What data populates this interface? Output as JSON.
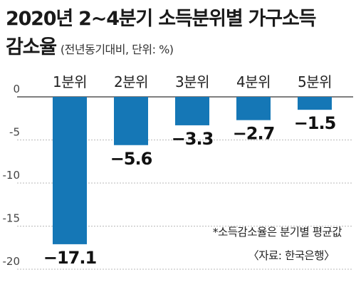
{
  "title": {
    "line1": "2020년 2~4분기 소득분위별 가구소득",
    "line2_main": "감소율",
    "line2_sub": "(전년동기대비, 단위: %)"
  },
  "footnote": "*소득감소율은 분기별 평균값",
  "source": "〈자료: 한국은행〉",
  "colors": {
    "bar": "#1577b6",
    "grid": "#b9b9b9",
    "axis": "#555555",
    "background": "#ffffff"
  },
  "chart_data": {
    "type": "bar",
    "categories": [
      "1분위",
      "2분위",
      "3분위",
      "4분위",
      "5분위"
    ],
    "values": [
      -17.1,
      -5.6,
      -3.3,
      -2.7,
      -1.5
    ],
    "value_labels": [
      "−17.1",
      "−5.6",
      "−3.3",
      "−2.7",
      "−1.5"
    ],
    "yticks": [
      0,
      -5,
      -10,
      -15,
      -20
    ],
    "ytick_labels": [
      "0",
      "-5",
      "-10",
      "-15",
      "-20"
    ],
    "ylim": [
      -20,
      0
    ],
    "grid": true,
    "category_axis_position": "top",
    "title": "2020년 2~4분기 소득분위별 가구소득 감소율",
    "xlabel": "",
    "ylabel": ""
  }
}
